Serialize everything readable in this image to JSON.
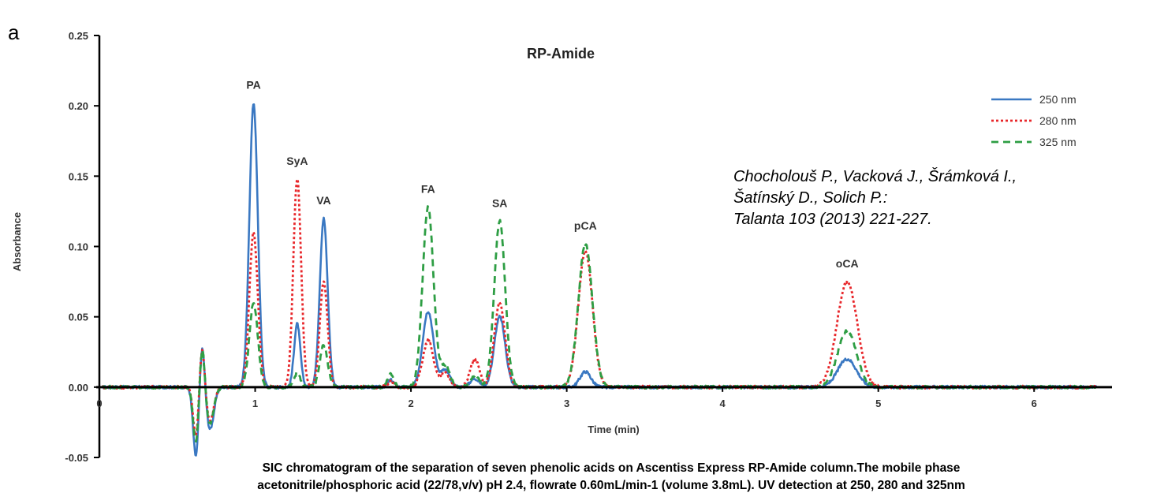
{
  "panel_letter": "a",
  "citation": {
    "line1": "Chocholouš P., Vacková J., Šrámková I.,",
    "line2": "Šatínský D., Solich P.:",
    "line3": "Talanta 103 (2013) 221-227."
  },
  "caption": {
    "line1": "SIC chromatogram of  the separation of seven phenolic acids on Ascentiss Express RP-Amide column.The mobile phase",
    "line2": "acetonitrile/phosphoric acid (22/78,v/v) pH 2.4, flowrate 0.60mL/min-1  (volume 3.8mL). UV detection at 250, 280 and 325nm"
  },
  "chart_data": {
    "type": "line",
    "title": "RP-Amide",
    "xlabel": "Time (min)",
    "ylabel": "Absorbance",
    "xlim": [
      0,
      6.5
    ],
    "ylim": [
      -0.05,
      0.25
    ],
    "x_ticks": [
      0,
      1,
      2,
      3,
      4,
      5,
      6
    ],
    "y_ticks": [
      -0.05,
      0.0,
      0.05,
      0.1,
      0.15,
      0.2,
      0.25
    ],
    "y_tick_labels": [
      "-0.05",
      "0.00",
      "0.05",
      "0.10",
      "0.15",
      "0.20",
      "0.25"
    ],
    "x_range_plotted": [
      0.02,
      6.4
    ],
    "grid": false,
    "legend_position": "top-right",
    "peaks": [
      {
        "label": "PA",
        "time": 0.99
      },
      {
        "label": "SyA",
        "time": 1.27
      },
      {
        "label": "VA",
        "time": 1.44
      },
      {
        "label": "FA",
        "time": 2.11
      },
      {
        "label": "SA",
        "time": 2.57
      },
      {
        "label": "pCA",
        "time": 3.12
      },
      {
        "label": "oCA",
        "time": 4.8
      }
    ],
    "series": [
      {
        "name": "250 nm",
        "color": "#3a78c2",
        "style": "solid",
        "peaks": [
          {
            "t": 0.62,
            "h": -0.05,
            "w": 0.018
          },
          {
            "t": 0.66,
            "h": 0.035,
            "w": 0.016
          },
          {
            "t": 0.71,
            "h": -0.03,
            "w": 0.025
          },
          {
            "t": 0.99,
            "h": 0.202,
            "w": 0.027
          },
          {
            "t": 1.27,
            "h": 0.045,
            "w": 0.02
          },
          {
            "t": 1.44,
            "h": 0.12,
            "w": 0.025
          },
          {
            "t": 1.87,
            "h": 0.005,
            "w": 0.02
          },
          {
            "t": 2.11,
            "h": 0.054,
            "w": 0.035
          },
          {
            "t": 2.22,
            "h": 0.012,
            "w": 0.03
          },
          {
            "t": 2.41,
            "h": 0.006,
            "w": 0.03
          },
          {
            "t": 2.57,
            "h": 0.05,
            "w": 0.035
          },
          {
            "t": 3.12,
            "h": 0.011,
            "w": 0.035
          },
          {
            "t": 4.8,
            "h": 0.02,
            "w": 0.06
          }
        ]
      },
      {
        "name": "280 nm",
        "color": "#e8262a",
        "style": "dotted",
        "peaks": [
          {
            "t": 0.62,
            "h": -0.035,
            "w": 0.018
          },
          {
            "t": 0.66,
            "h": 0.032,
            "w": 0.016
          },
          {
            "t": 0.71,
            "h": -0.024,
            "w": 0.025
          },
          {
            "t": 0.99,
            "h": 0.11,
            "w": 0.027
          },
          {
            "t": 1.27,
            "h": 0.148,
            "w": 0.025
          },
          {
            "t": 1.44,
            "h": 0.075,
            "w": 0.025
          },
          {
            "t": 1.87,
            "h": 0.004,
            "w": 0.02
          },
          {
            "t": 2.11,
            "h": 0.033,
            "w": 0.035
          },
          {
            "t": 2.22,
            "h": 0.01,
            "w": 0.03
          },
          {
            "t": 2.41,
            "h": 0.02,
            "w": 0.03
          },
          {
            "t": 2.57,
            "h": 0.06,
            "w": 0.035
          },
          {
            "t": 3.12,
            "h": 0.097,
            "w": 0.045
          },
          {
            "t": 4.8,
            "h": 0.075,
            "w": 0.065
          }
        ]
      },
      {
        "name": "325 nm",
        "color": "#2e9e44",
        "style": "dashed",
        "peaks": [
          {
            "t": 0.62,
            "h": -0.04,
            "w": 0.018
          },
          {
            "t": 0.66,
            "h": 0.033,
            "w": 0.016
          },
          {
            "t": 0.71,
            "h": -0.026,
            "w": 0.025
          },
          {
            "t": 0.99,
            "h": 0.06,
            "w": 0.027
          },
          {
            "t": 1.27,
            "h": 0.01,
            "w": 0.02
          },
          {
            "t": 1.44,
            "h": 0.03,
            "w": 0.025
          },
          {
            "t": 1.87,
            "h": 0.009,
            "w": 0.02
          },
          {
            "t": 2.11,
            "h": 0.128,
            "w": 0.035
          },
          {
            "t": 2.22,
            "h": 0.015,
            "w": 0.03
          },
          {
            "t": 2.41,
            "h": 0.008,
            "w": 0.03
          },
          {
            "t": 2.57,
            "h": 0.118,
            "w": 0.035
          },
          {
            "t": 3.12,
            "h": 0.102,
            "w": 0.045
          },
          {
            "t": 4.8,
            "h": 0.04,
            "w": 0.06
          }
        ]
      }
    ]
  }
}
